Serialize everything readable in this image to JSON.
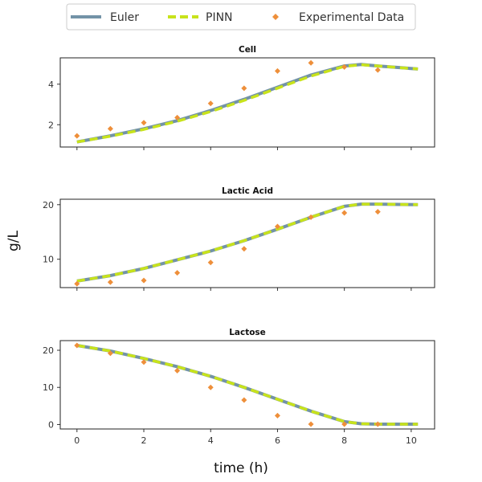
{
  "chart_data": {
    "type": "line",
    "xlabel": "time (h)",
    "ylabel": "g/L",
    "xlim": [
      -0.5,
      10.7
    ],
    "xticks": [
      0,
      2,
      4,
      6,
      8,
      10
    ],
    "legend": {
      "placement": "top-center",
      "entries": [
        "Euler",
        "PINN",
        "Experimental Data"
      ]
    },
    "colors": {
      "euler": "#7393a7",
      "pinn": "#c8e31b",
      "experimental": "#ee8f3a"
    },
    "panels": [
      {
        "title": "Cell",
        "ylim": [
          0.9,
          5.3
        ],
        "yticks": [
          2,
          4
        ],
        "series": [
          {
            "name": "Euler",
            "x": [
              0,
              1,
              2,
              3,
              4,
              5,
              6,
              7,
              8,
              8.5,
              9,
              10.2
            ],
            "y": [
              1.15,
              1.45,
              1.8,
              2.2,
              2.7,
              3.25,
              3.85,
              4.45,
              4.9,
              4.97,
              4.9,
              4.75
            ]
          },
          {
            "name": "PINN",
            "x": [
              0,
              1,
              2,
              3,
              4,
              5,
              6,
              7,
              8,
              8.5,
              9,
              10.2
            ],
            "y": [
              1.15,
              1.43,
              1.77,
              2.17,
              2.65,
              3.2,
              3.8,
              4.4,
              4.88,
              4.96,
              4.9,
              4.75
            ]
          },
          {
            "name": "Experimental Data",
            "x": [
              0,
              1,
              2,
              3,
              4,
              5,
              6,
              7,
              8,
              9
            ],
            "y": [
              1.45,
              1.8,
              2.1,
              2.35,
              3.05,
              3.8,
              4.65,
              5.05,
              4.85,
              4.7
            ]
          }
        ]
      },
      {
        "title": "Lactic Acid",
        "ylim": [
          4.8,
          21.0
        ],
        "yticks": [
          10,
          20
        ],
        "series": [
          {
            "name": "Euler",
            "x": [
              0,
              1,
              2,
              3,
              4,
              5,
              6,
              7,
              8,
              8.5,
              9,
              10.2
            ],
            "y": [
              6.0,
              7.0,
              8.3,
              9.9,
              11.5,
              13.4,
              15.5,
              17.7,
              19.7,
              20.1,
              20.1,
              20.0
            ]
          },
          {
            "name": "PINN",
            "x": [
              0,
              1,
              2,
              3,
              4,
              5,
              6,
              7,
              8,
              8.5,
              9,
              10.2
            ],
            "y": [
              6.0,
              7.0,
              8.3,
              9.9,
              11.5,
              13.4,
              15.5,
              17.7,
              19.7,
              20.1,
              20.1,
              20.0
            ]
          },
          {
            "name": "Experimental Data",
            "x": [
              0,
              1,
              2,
              3,
              4,
              5,
              6,
              7,
              8,
              9
            ],
            "y": [
              5.5,
              5.8,
              6.1,
              7.5,
              9.4,
              11.9,
              16.0,
              17.7,
              18.5,
              18.7
            ]
          }
        ]
      },
      {
        "title": "Lactose",
        "ylim": [
          -1.2,
          22.6
        ],
        "yticks": [
          0,
          10,
          20
        ],
        "series": [
          {
            "name": "Euler",
            "x": [
              0,
              1,
              2,
              3,
              4,
              5,
              6,
              7,
              8,
              8.5,
              9,
              10.2
            ],
            "y": [
              21.3,
              19.8,
              17.8,
              15.6,
              13.0,
              10.0,
              6.8,
              3.6,
              0.8,
              0.2,
              0.1,
              0.1
            ]
          },
          {
            "name": "PINN",
            "x": [
              0,
              1,
              2,
              3,
              4,
              5,
              6,
              7,
              8,
              8.5,
              9,
              10.2
            ],
            "y": [
              21.3,
              19.8,
              17.8,
              15.6,
              13.0,
              10.0,
              6.8,
              3.6,
              0.8,
              0.2,
              0.1,
              0.1
            ]
          },
          {
            "name": "Experimental Data",
            "x": [
              0,
              1,
              2,
              3,
              4,
              5,
              6,
              7,
              8,
              9
            ],
            "y": [
              21.3,
              19.2,
              16.8,
              14.5,
              10.0,
              6.6,
              2.4,
              0.1,
              0.1,
              0.1
            ]
          }
        ]
      }
    ]
  }
}
